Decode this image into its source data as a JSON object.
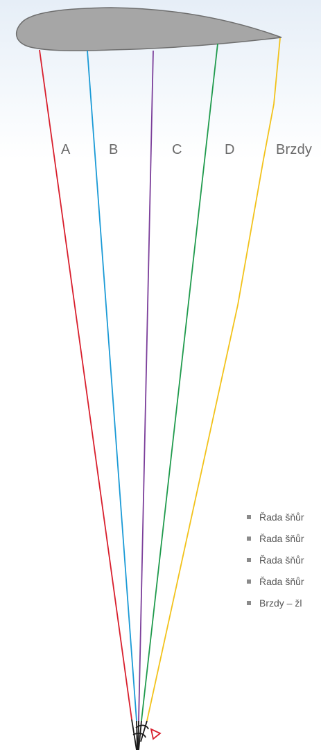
{
  "diagram": {
    "row_labels": {
      "a": "A",
      "b": "B",
      "c": "C",
      "d": "D",
      "brakes": "Brzdy"
    },
    "line_colors": {
      "a": "#d81e2c",
      "b": "#1a9ad6",
      "c": "#7b3e9a",
      "d": "#1f9a4c",
      "brakes": "#f2c21a"
    },
    "wing_fill": "#a6a6a6",
    "wing_stroke": "#6e6e6e",
    "riser_color": "#1a1a1a",
    "handle_color": "#d81e2c"
  },
  "legend": {
    "items": [
      {
        "label": "Řada šňůr"
      },
      {
        "label": "Řada šňůr"
      },
      {
        "label": "Řada šňůr"
      },
      {
        "label": "Řada šňůr"
      },
      {
        "label": "Brzdy – žl"
      }
    ]
  }
}
